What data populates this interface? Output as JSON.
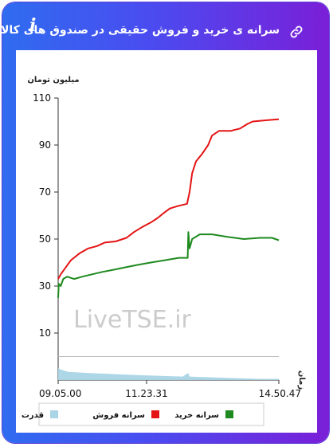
{
  "header": {
    "title": "سرانه ی خرید و فروش حقیقی در صندوق های کالایی",
    "info_icon": "info-icon",
    "link_icon": "link-icon"
  },
  "watermark": "LiveTSE.ir",
  "colors": {
    "sell": "#e41414",
    "buy": "#1f8a1f",
    "power": "#a9d5e6",
    "header_start": "#2f6cf0",
    "header_end": "#7a1fd8"
  },
  "chart_data": {
    "type": "line",
    "ylabel": "میلیون تومان",
    "xlabel": "زمان",
    "yticks": [
      110,
      90,
      70,
      50,
      30,
      10
    ],
    "ylim": [
      -10,
      110
    ],
    "xticks": [
      "09.05.00",
      "11.23.31",
      "14.50.47"
    ],
    "xlim": [
      "09.05.00",
      "14.50.47"
    ],
    "grid": false,
    "legend_position": "bottom",
    "series": [
      {
        "name": "سرانه فروش",
        "color": "#e41414",
        "points": [
          [
            "09.05.00",
            33
          ],
          [
            "09.09.00",
            35
          ],
          [
            "09.17.00",
            38
          ],
          [
            "09.25.00",
            41
          ],
          [
            "09.39.00",
            44
          ],
          [
            "09.52.00",
            46
          ],
          [
            "10.06.00",
            47
          ],
          [
            "10.18.00",
            48.5
          ],
          [
            "10.35.00",
            49
          ],
          [
            "10.52.00",
            50.5
          ],
          [
            "11.04.00",
            53
          ],
          [
            "11.16.00",
            55
          ],
          [
            "11.30.00",
            57
          ],
          [
            "11.41.00",
            59
          ],
          [
            "11.50.00",
            61
          ],
          [
            "12.00.00",
            63
          ],
          [
            "12.12.00",
            64
          ],
          [
            "12.27.00",
            65
          ],
          [
            "12.31.00",
            70
          ],
          [
            "12.35.00",
            78
          ],
          [
            "12.41.00",
            83
          ],
          [
            "12.50.00",
            86
          ],
          [
            "13.00.00",
            90
          ],
          [
            "13.06.00",
            94
          ],
          [
            "13.17.00",
            96
          ],
          [
            "13.35.00",
            96
          ],
          [
            "13.50.00",
            97
          ],
          [
            "14.02.00",
            99
          ],
          [
            "14.10.00",
            100
          ],
          [
            "14.30.00",
            100.5
          ],
          [
            "14.50.47",
            101
          ]
        ]
      },
      {
        "name": "سرانه خرید",
        "color": "#1f8a1f",
        "points": [
          [
            "09.05.00",
            25
          ],
          [
            "09.06.00",
            31
          ],
          [
            "09.09.00",
            30
          ],
          [
            "09.13.00",
            33
          ],
          [
            "09.19.00",
            34
          ],
          [
            "09.30.00",
            33
          ],
          [
            "09.43.00",
            34
          ],
          [
            "09.58.00",
            35
          ],
          [
            "10.14.00",
            36
          ],
          [
            "10.33.00",
            37
          ],
          [
            "10.51.00",
            38
          ],
          [
            "11.10.00",
            39
          ],
          [
            "11.30.00",
            40
          ],
          [
            "11.52.00",
            41
          ],
          [
            "12.14.00",
            42
          ],
          [
            "12.28.00",
            42
          ],
          [
            "12.29.00",
            53
          ],
          [
            "12.31.00",
            46
          ],
          [
            "12.35.00",
            50
          ],
          [
            "12.47.00",
            52
          ],
          [
            "13.06.00",
            52
          ],
          [
            "13.29.00",
            51
          ],
          [
            "13.56.00",
            50
          ],
          [
            "14.21.00",
            50.5
          ],
          [
            "14.40.00",
            50.5
          ],
          [
            "14.50.47",
            49.5
          ]
        ]
      },
      {
        "name": "قدرت",
        "color": "#a9d5e6",
        "type": "area",
        "points": [
          [
            "09.05.00",
            -5
          ],
          [
            "09.09.00",
            -5.5
          ],
          [
            "09.21.00",
            -6.5
          ],
          [
            "09.52.00",
            -7
          ],
          [
            "10.35.00",
            -7.5
          ],
          [
            "11.23.00",
            -8
          ],
          [
            "12.20.00",
            -8.5
          ],
          [
            "12.29.00",
            -7
          ],
          [
            "12.31.00",
            -8.5
          ],
          [
            "13.25.00",
            -9
          ],
          [
            "14.21.00",
            -9.5
          ],
          [
            "14.50.47",
            -9.5
          ]
        ]
      }
    ]
  }
}
